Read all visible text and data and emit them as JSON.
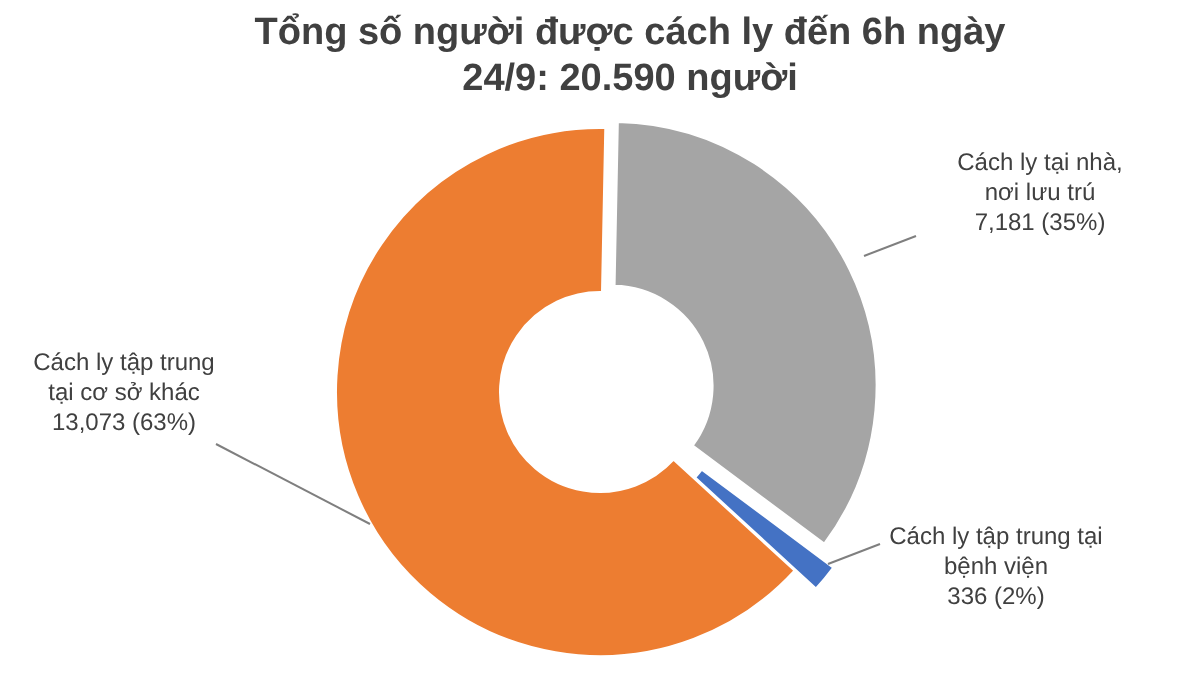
{
  "chart_data": {
    "type": "donut",
    "title": "Tổng số người được cách ly đến 6h ngày 24/9: 20.590 người",
    "categories": [
      "Cách ly tại nhà, nơi lưu trú",
      "Cách ly tập trung tại bệnh viện",
      "Cách ly tập trung tại cơ sở khác"
    ],
    "values": [
      7181,
      336,
      13073
    ],
    "colors": [
      "#a5a5a5",
      "#4472c4",
      "#ed7d31"
    ],
    "value_labels": [
      "7,181 (35%)",
      "336 (2%)",
      "13,073 (63%)"
    ]
  }
}
